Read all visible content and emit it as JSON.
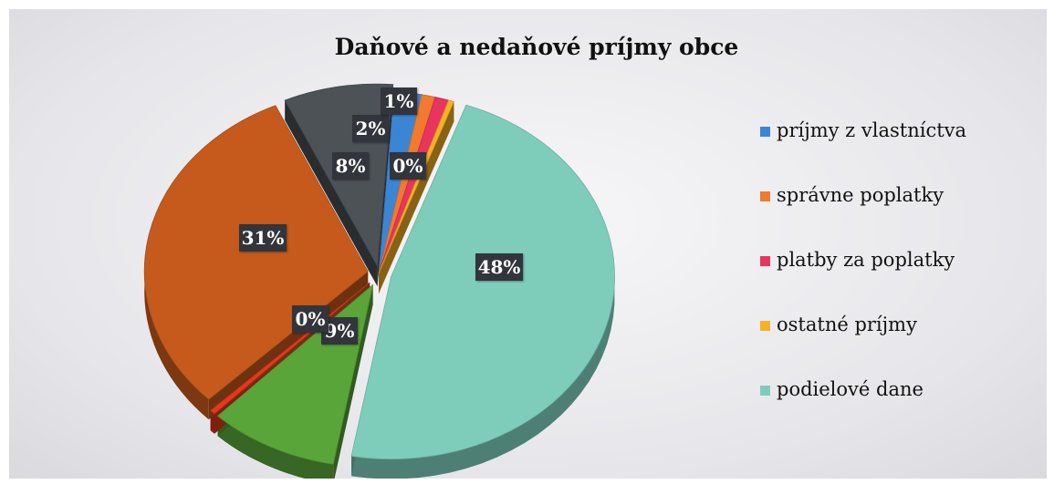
{
  "chart_data": {
    "type": "pie",
    "title": "Daňové a nedaňové príjmy obce",
    "legend_position": "right",
    "slices": [
      {
        "label": "príjmy z vlastníctva",
        "value": 2,
        "color": "#3b86d4",
        "in_legend": true,
        "data_label": "2%"
      },
      {
        "label": "správne poplatky",
        "value": 1,
        "color": "#f07a2e",
        "in_legend": true,
        "data_label": "1%"
      },
      {
        "label": "platby za poplatky",
        "value": 1,
        "color": "#e8345e",
        "in_legend": true,
        "data_label": ""
      },
      {
        "label": "ostatné príjmy",
        "value": 0.4,
        "color": "#f5b324",
        "in_legend": true,
        "data_label": "0%"
      },
      {
        "label": "podielové dane",
        "value": 48,
        "color": "#7ecdbb",
        "in_legend": true,
        "data_label": "48%"
      },
      {
        "label": "",
        "value": 9.5,
        "color": "#5aa53a",
        "in_legend": false,
        "data_label": "9%"
      },
      {
        "label": "",
        "value": 0.4,
        "color": "#e8361c",
        "in_legend": false,
        "data_label": "0%"
      },
      {
        "label": "",
        "value": 31,
        "color": "#c65a1c",
        "in_legend": false,
        "data_label": "31%"
      },
      {
        "label": "",
        "value": 8,
        "color": "#4d5257",
        "in_legend": false,
        "data_label": "8%"
      }
    ]
  }
}
